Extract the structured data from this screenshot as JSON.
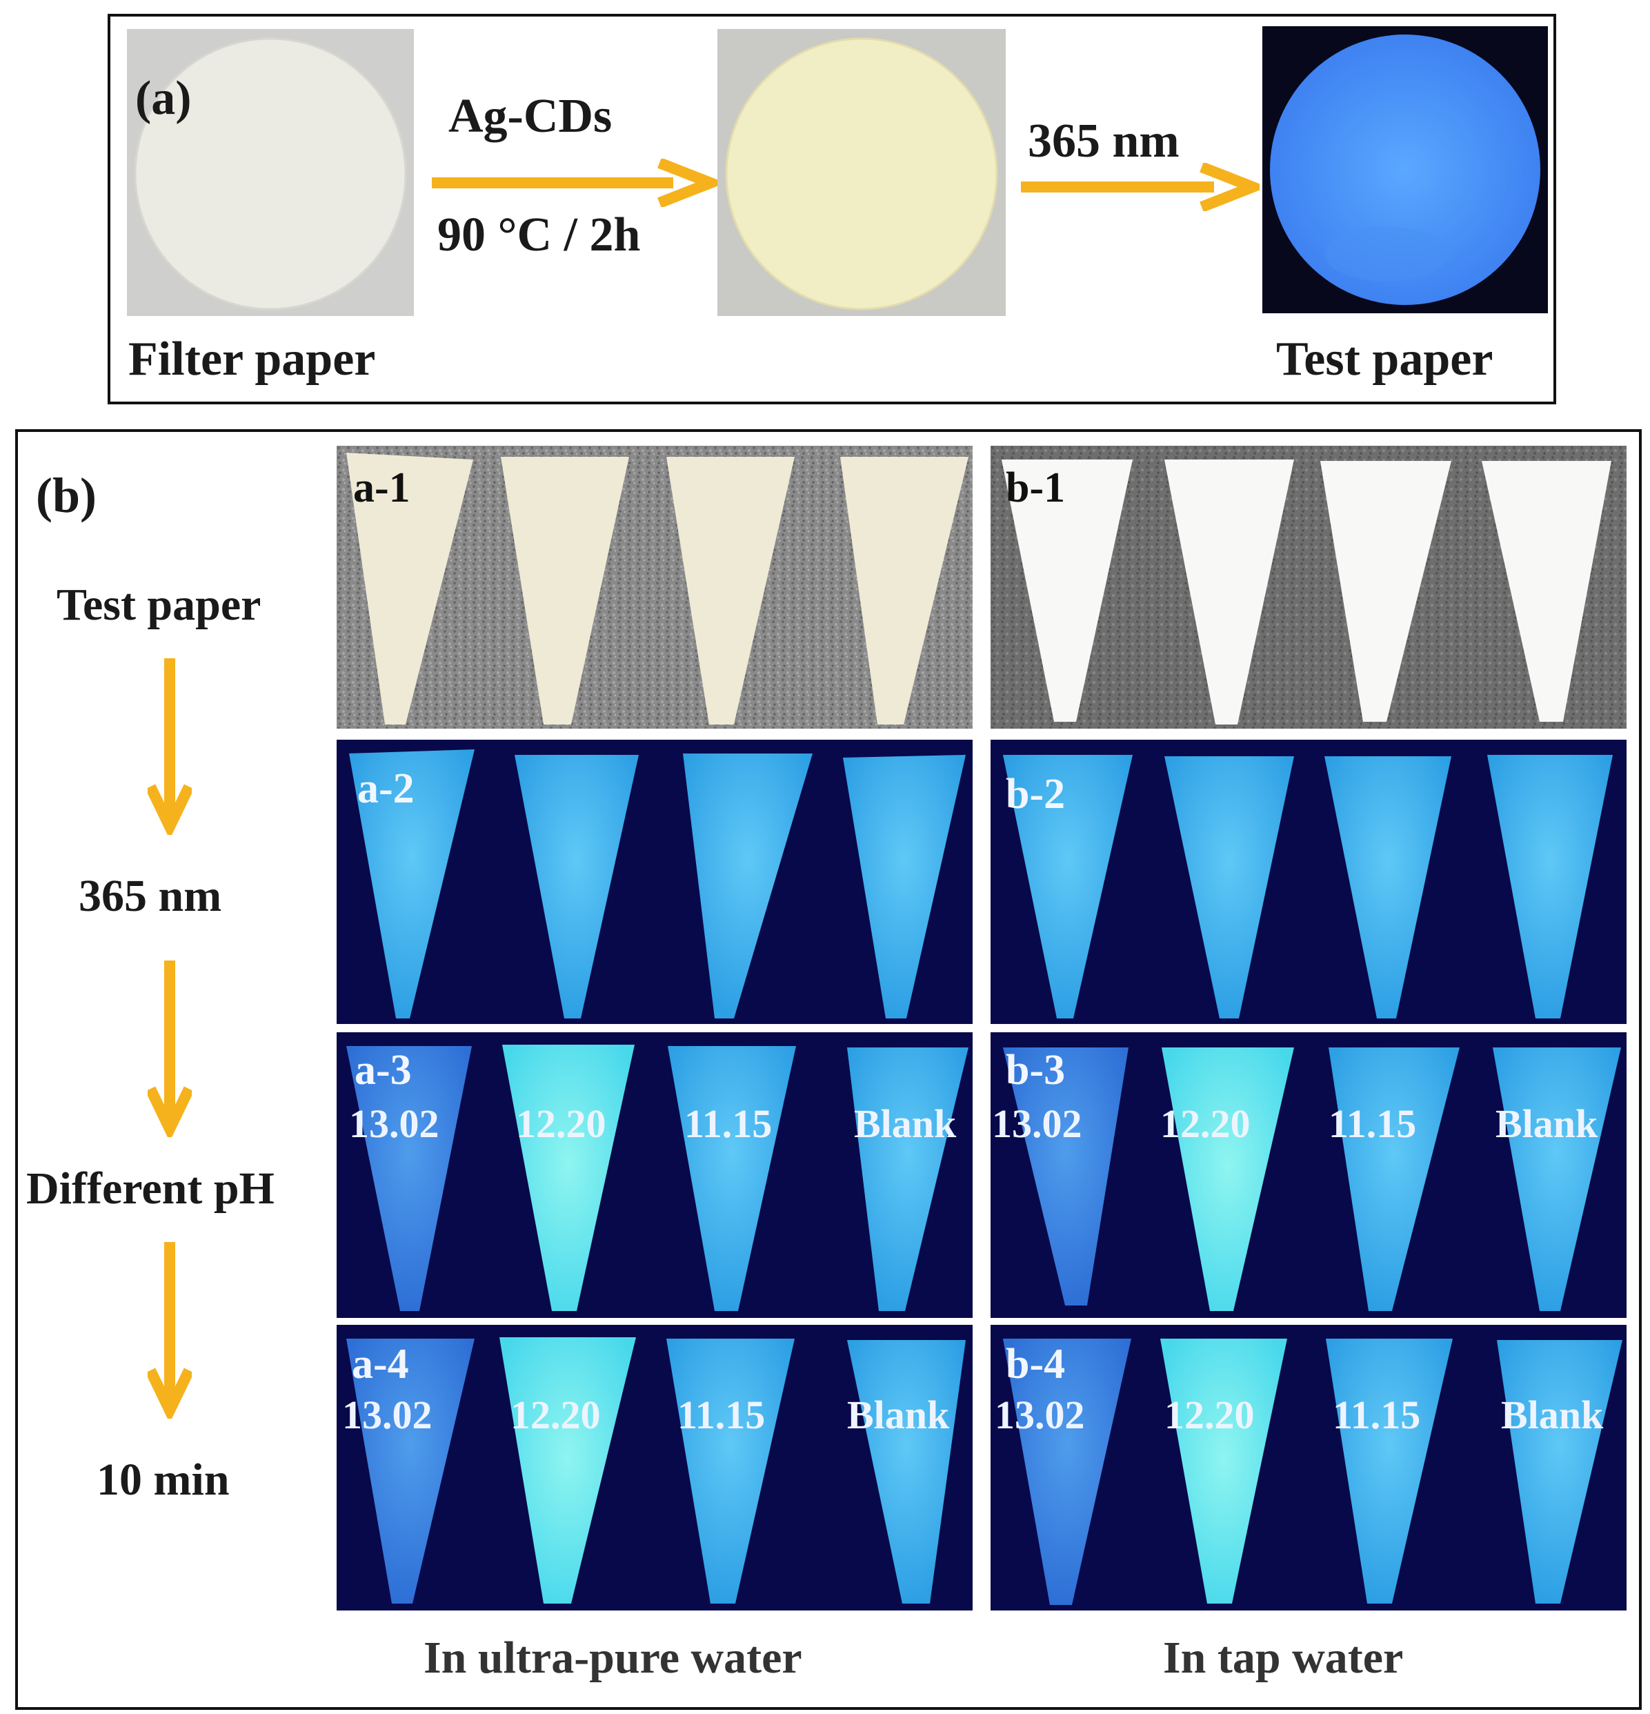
{
  "panel_a": {
    "label": "(a)",
    "step1_label_top": "Ag-CDs",
    "step1_label_bottom": "90 °C / 2h",
    "step2_label": "365 nm",
    "caption_left": "Filter paper",
    "caption_right": "Test paper"
  },
  "panel_b": {
    "label": "(b)",
    "flow": [
      "Test paper",
      "365 nm",
      "Different pH",
      "10 min"
    ],
    "column_left_caption": "In ultra-pure water",
    "column_right_caption": "In tap water",
    "tags_left": [
      "a-1",
      "a-2",
      "a-3",
      "a-4"
    ],
    "tags_right": [
      "b-1",
      "b-2",
      "b-3",
      "b-4"
    ],
    "ph_labels": [
      "13.02",
      "12.20",
      "11.15",
      "Blank"
    ]
  },
  "colors": {
    "arrow": "#f5b21c",
    "fluorescence": "#3ab8f0",
    "uv_background": "#08094a"
  }
}
